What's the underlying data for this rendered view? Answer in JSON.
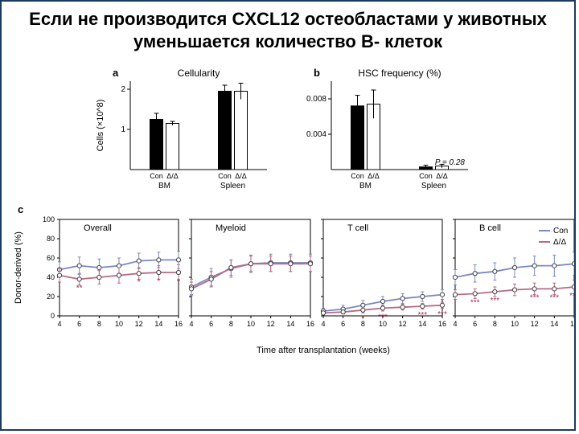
{
  "title": "Если не производится CXCL12 остеобластами у животных уменьшается количество В- клеток",
  "panel_a": {
    "label": "a",
    "title": "Cellularity",
    "ylabel": "Cells (×10^8)",
    "ylim": [
      0,
      2.2
    ],
    "yticks": [
      1,
      2
    ],
    "groups": [
      "BM",
      "Spleen"
    ],
    "subgroups": [
      "Con",
      "Δ/Δ"
    ],
    "data": {
      "BM": {
        "Con": 1.25,
        "dd": 1.15
      },
      "Spleen": {
        "Con": 1.95,
        "dd": 1.95
      }
    },
    "errors": {
      "BM": {
        "Con": 0.15,
        "dd": 0.05
      },
      "Spleen": {
        "Con": 0.15,
        "dd": 0.2
      }
    },
    "bar_colors": {
      "Con": "#000000",
      "dd": "#ffffff"
    },
    "bar_border": "#000000",
    "background": "#ffffff"
  },
  "panel_b": {
    "label": "b",
    "title": "HSC frequency (%)",
    "p_text": "P = 0.28",
    "ylim": [
      0,
      0.01
    ],
    "yticks": [
      0.004,
      0.008
    ],
    "groups": [
      "BM",
      "Spleen"
    ],
    "subgroups": [
      "Con",
      "Δ/Δ"
    ],
    "data": {
      "BM": {
        "Con": 0.0072,
        "dd": 0.0074
      },
      "Spleen": {
        "Con": 0.0003,
        "dd": 0.0004
      }
    },
    "errors": {
      "BM": {
        "Con": 0.0012,
        "dd": 0.0016
      },
      "Spleen": {
        "Con": 0.0002,
        "dd": 0.0002
      }
    },
    "bar_colors": {
      "Con": "#000000",
      "dd": "#ffffff"
    },
    "bar_border": "#000000"
  },
  "panel_c": {
    "label": "c",
    "xlabel": "Time after transplantation (weeks)",
    "ylabel": "Donor-derived (%)",
    "ylim": [
      0,
      100
    ],
    "yticks": [
      0,
      20,
      40,
      60,
      80,
      100
    ],
    "xlim": [
      4,
      16
    ],
    "xticks": [
      4,
      6,
      8,
      10,
      12,
      14,
      16
    ],
    "legend": {
      "Con": "Con",
      "dd": "Δ/Δ"
    },
    "line_colors": {
      "Con": "#7a89c2",
      "dd": "#b76a83"
    },
    "marker_fill": "#ffffff",
    "marker_stroke": "#444444",
    "sig_color": "#a03050",
    "charts": [
      {
        "title": "Overall",
        "Con": [
          48,
          52,
          50,
          52,
          57,
          58,
          58
        ],
        "dd": [
          42,
          38,
          40,
          42,
          44,
          45,
          45
        ],
        "errCon": [
          8,
          9,
          9,
          8,
          8,
          8,
          9
        ],
        "errdd": [
          7,
          6,
          7,
          8,
          6,
          7,
          8
        ],
        "sig": [
          "",
          "**",
          "",
          "",
          "*",
          "*",
          "*"
        ]
      },
      {
        "title": "Myeloid",
        "Con": [
          30,
          40,
          49,
          54,
          55,
          55,
          55
        ],
        "dd": [
          28,
          38,
          50,
          54,
          54,
          54,
          54
        ],
        "errCon": [
          8,
          9,
          9,
          9,
          9,
          9,
          9
        ],
        "errdd": [
          7,
          8,
          8,
          8,
          8,
          8,
          8
        ],
        "sig": [
          "",
          "",
          "",
          "",
          "",
          "",
          ""
        ]
      },
      {
        "title": "T cell",
        "Con": [
          5,
          7,
          11,
          15,
          18,
          20,
          22
        ],
        "dd": [
          3,
          4,
          6,
          8,
          9,
          10,
          11
        ],
        "errCon": [
          3,
          4,
          5,
          5,
          5,
          5,
          5
        ],
        "errdd": [
          2,
          2,
          3,
          3,
          3,
          3,
          3
        ],
        "sig": [
          "",
          "",
          "*",
          "***",
          "",
          "***",
          "***"
        ]
      },
      {
        "title": "B cell",
        "Con": [
          40,
          44,
          46,
          50,
          52,
          52,
          54
        ],
        "dd": [
          22,
          23,
          25,
          27,
          28,
          28,
          30
        ],
        "errCon": [
          8,
          9,
          9,
          10,
          10,
          11,
          12
        ],
        "errdd": [
          5,
          5,
          5,
          6,
          6,
          6,
          7
        ],
        "sig": [
          "",
          "***",
          "***",
          "",
          "***",
          "***",
          "***"
        ]
      }
    ]
  }
}
